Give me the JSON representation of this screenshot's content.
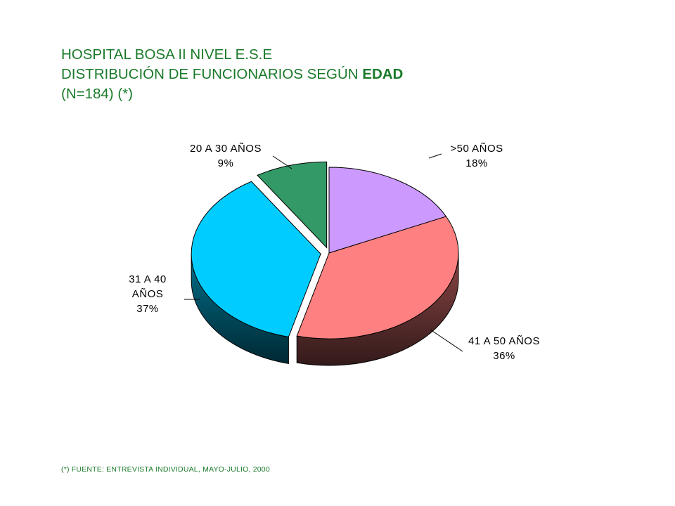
{
  "title": {
    "line1": "HOSPITAL BOSA II NIVEL E.S.E",
    "line2_prefix": "DISTRIBUCIÓN DE FUNCIONARIOS SEGÚN ",
    "line2_bold": "EDAD",
    "line3": "(N=184) (*)"
  },
  "footnote": "(*) FUENTE:  ENTREVISTA  INDIVIDUAL,  MAYO-JULIO,  2000",
  "colors": {
    "title_text": "#1a7a2a",
    "slice_gt50": "#cc99ff",
    "slice_41_50": "#ff8080",
    "slice_31_40": "#00ccff",
    "slice_20_30": "#339966"
  },
  "chart_data": {
    "type": "pie",
    "style": "3d-exploded",
    "title": "HOSPITAL BOSA II NIVEL E.S.E DISTRIBUCIÓN DE FUNCIONARIOS SEGÚN EDAD (N=184) (*)",
    "slices": [
      {
        "label": ">50 AÑOS",
        "label_lines": [
          ">50 AÑOS"
        ],
        "value": 18,
        "pct_label": "18%",
        "color": "#cc99ff",
        "exploded": false
      },
      {
        "label": "41 A 50 AÑOS",
        "label_lines": [
          "41 A 50 AÑOS"
        ],
        "value": 36,
        "pct_label": "36%",
        "color": "#ff8080",
        "exploded": false
      },
      {
        "label": "31 A 40 AÑOS",
        "label_lines": [
          "31 A 40",
          "AÑOS"
        ],
        "value": 37,
        "pct_label": "37%",
        "color": "#00ccff",
        "exploded": true
      },
      {
        "label": "20 A 30 AÑOS",
        "label_lines": [
          "20 A 30 AÑOS"
        ],
        "value": 9,
        "pct_label": "9%",
        "color": "#339966",
        "exploded": true
      }
    ]
  }
}
